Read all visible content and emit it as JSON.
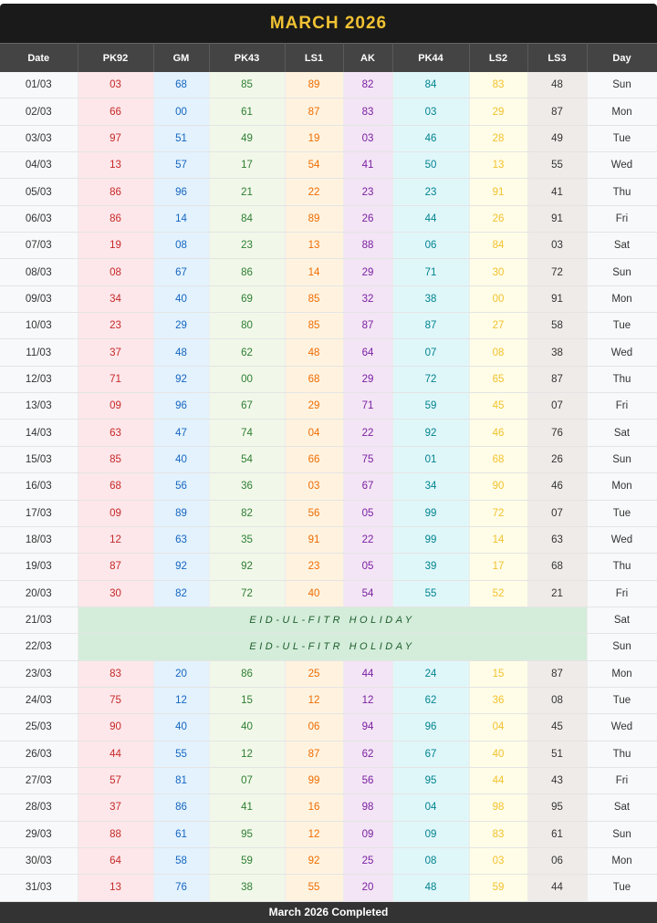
{
  "title": "MARCH 2026",
  "columns": [
    {
      "label": "Date"
    },
    {
      "label": "PK92",
      "bg": "#fde7ea",
      "color": "#c62828"
    },
    {
      "label": "GM",
      "bg": "#e3f2fd",
      "color": "#1565c0"
    },
    {
      "label": "PK43",
      "bg": "#f1f8e9",
      "color": "#2e7d32"
    },
    {
      "label": "LS1",
      "bg": "#fff3e0",
      "color": "#ef6c00"
    },
    {
      "label": "AK",
      "bg": "#f3e5f5",
      "color": "#7b1fa2"
    },
    {
      "label": "PK44",
      "bg": "#e0f7fa",
      "color": "#00838f"
    },
    {
      "label": "LS2",
      "bg": "#fffde7",
      "color": "#f2c12e"
    },
    {
      "label": "LS3",
      "bg": "#efebe9",
      "color": "#333333"
    },
    {
      "label": "Day"
    }
  ],
  "holiday_text": "EID-UL-FITR HOLIDAY",
  "rows": [
    {
      "date": "01/03",
      "values": [
        "03",
        "68",
        "85",
        "89",
        "82",
        "84",
        "83",
        "48"
      ],
      "day": "Sun"
    },
    {
      "date": "02/03",
      "values": [
        "66",
        "00",
        "61",
        "87",
        "83",
        "03",
        "29",
        "87"
      ],
      "day": "Mon"
    },
    {
      "date": "03/03",
      "values": [
        "97",
        "51",
        "49",
        "19",
        "03",
        "46",
        "28",
        "49"
      ],
      "day": "Tue"
    },
    {
      "date": "04/03",
      "values": [
        "13",
        "57",
        "17",
        "54",
        "41",
        "50",
        "13",
        "55"
      ],
      "day": "Wed"
    },
    {
      "date": "05/03",
      "values": [
        "86",
        "96",
        "21",
        "22",
        "23",
        "23",
        "91",
        "41"
      ],
      "day": "Thu"
    },
    {
      "date": "06/03",
      "values": [
        "86",
        "14",
        "84",
        "89",
        "26",
        "44",
        "26",
        "91"
      ],
      "day": "Fri"
    },
    {
      "date": "07/03",
      "values": [
        "19",
        "08",
        "23",
        "13",
        "88",
        "06",
        "84",
        "03"
      ],
      "day": "Sat"
    },
    {
      "date": "08/03",
      "values": [
        "08",
        "67",
        "86",
        "14",
        "29",
        "71",
        "30",
        "72"
      ],
      "day": "Sun"
    },
    {
      "date": "09/03",
      "values": [
        "34",
        "40",
        "69",
        "85",
        "32",
        "38",
        "00",
        "91"
      ],
      "day": "Mon"
    },
    {
      "date": "10/03",
      "values": [
        "23",
        "29",
        "80",
        "85",
        "87",
        "87",
        "27",
        "58"
      ],
      "day": "Tue"
    },
    {
      "date": "11/03",
      "values": [
        "37",
        "48",
        "62",
        "48",
        "64",
        "07",
        "08",
        "38"
      ],
      "day": "Wed"
    },
    {
      "date": "12/03",
      "values": [
        "71",
        "92",
        "00",
        "68",
        "29",
        "72",
        "65",
        "87"
      ],
      "day": "Thu"
    },
    {
      "date": "13/03",
      "values": [
        "09",
        "96",
        "67",
        "29",
        "71",
        "59",
        "45",
        "07"
      ],
      "day": "Fri"
    },
    {
      "date": "14/03",
      "values": [
        "63",
        "47",
        "74",
        "04",
        "22",
        "92",
        "46",
        "76"
      ],
      "day": "Sat"
    },
    {
      "date": "15/03",
      "values": [
        "85",
        "40",
        "54",
        "66",
        "75",
        "01",
        "68",
        "26"
      ],
      "day": "Sun"
    },
    {
      "date": "16/03",
      "values": [
        "68",
        "56",
        "36",
        "03",
        "67",
        "34",
        "90",
        "46"
      ],
      "day": "Mon"
    },
    {
      "date": "17/03",
      "values": [
        "09",
        "89",
        "82",
        "56",
        "05",
        "99",
        "72",
        "07"
      ],
      "day": "Tue"
    },
    {
      "date": "18/03",
      "values": [
        "12",
        "63",
        "35",
        "91",
        "22",
        "99",
        "14",
        "63"
      ],
      "day": "Wed"
    },
    {
      "date": "19/03",
      "values": [
        "87",
        "92",
        "92",
        "23",
        "05",
        "39",
        "17",
        "68"
      ],
      "day": "Thu"
    },
    {
      "date": "20/03",
      "values": [
        "30",
        "82",
        "72",
        "40",
        "54",
        "55",
        "52",
        "21"
      ],
      "day": "Fri"
    },
    {
      "date": "21/03",
      "holiday": true,
      "day": "Sat"
    },
    {
      "date": "22/03",
      "holiday": true,
      "day": "Sun"
    },
    {
      "date": "23/03",
      "values": [
        "83",
        "20",
        "86",
        "25",
        "44",
        "24",
        "15",
        "87"
      ],
      "day": "Mon"
    },
    {
      "date": "24/03",
      "values": [
        "75",
        "12",
        "15",
        "12",
        "12",
        "62",
        "36",
        "08"
      ],
      "day": "Tue"
    },
    {
      "date": "25/03",
      "values": [
        "90",
        "40",
        "40",
        "06",
        "94",
        "96",
        "04",
        "45"
      ],
      "day": "Wed"
    },
    {
      "date": "26/03",
      "values": [
        "44",
        "55",
        "12",
        "87",
        "62",
        "67",
        "40",
        "51"
      ],
      "day": "Thu"
    },
    {
      "date": "27/03",
      "values": [
        "57",
        "81",
        "07",
        "99",
        "56",
        "95",
        "44",
        "43"
      ],
      "day": "Fri"
    },
    {
      "date": "28/03",
      "values": [
        "37",
        "86",
        "41",
        "16",
        "98",
        "04",
        "98",
        "95"
      ],
      "day": "Sat"
    },
    {
      "date": "29/03",
      "values": [
        "88",
        "61",
        "95",
        "12",
        "09",
        "09",
        "83",
        "61"
      ],
      "day": "Sun"
    },
    {
      "date": "30/03",
      "values": [
        "64",
        "58",
        "59",
        "92",
        "25",
        "08",
        "03",
        "06"
      ],
      "day": "Mon"
    },
    {
      "date": "31/03",
      "values": [
        "13",
        "76",
        "38",
        "55",
        "20",
        "48",
        "59",
        "44"
      ],
      "day": "Tue"
    }
  ],
  "footer": "March 2026 Completed"
}
